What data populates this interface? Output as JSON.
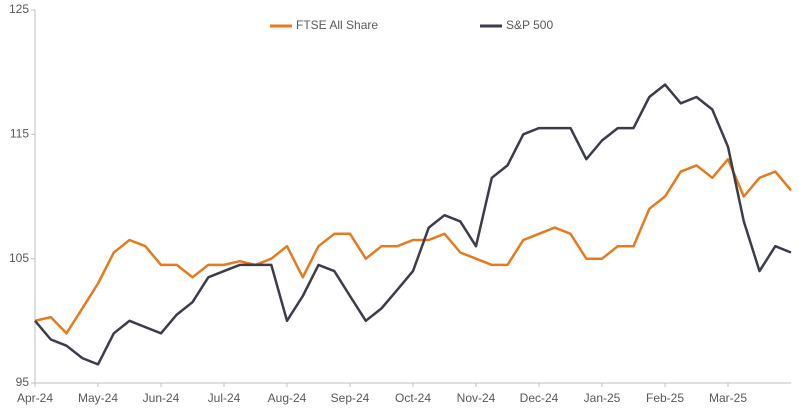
{
  "chart_data": {
    "type": "line",
    "categories": [
      "Apr-24",
      null,
      null,
      null,
      "May-24",
      null,
      null,
      null,
      "Jun-24",
      null,
      null,
      null,
      "Jul-24",
      null,
      null,
      null,
      "Aug-24",
      null,
      null,
      null,
      "Sep-24",
      null,
      null,
      null,
      "Oct-24",
      null,
      null,
      null,
      "Nov-24",
      null,
      null,
      null,
      "Dec-24",
      null,
      null,
      null,
      "Jan-25",
      null,
      null,
      null,
      "Feb-25",
      null,
      null,
      null,
      "Mar-25",
      null,
      null,
      null,
      null
    ],
    "series": [
      {
        "name": "FTSE All Share",
        "color": "#e57a1e",
        "values": [
          100,
          100.3,
          99,
          101,
          103,
          105.5,
          106.5,
          106,
          104.5,
          104.5,
          103.5,
          104.5,
          104.5,
          104.8,
          104.5,
          105,
          106,
          103.5,
          106,
          107,
          107,
          105,
          106,
          106,
          106.5,
          106.5,
          107,
          105.5,
          105,
          104.5,
          104.5,
          106.5,
          107,
          107.5,
          107,
          105,
          105,
          106,
          106,
          109,
          110,
          112,
          112.5,
          111.5,
          113,
          110,
          111.5,
          112,
          110.5
        ]
      },
      {
        "name": "S&P 500",
        "color": "#3b3d4a",
        "values": [
          100,
          98.5,
          98,
          97,
          96.5,
          99,
          100,
          99.5,
          99,
          100.5,
          101.5,
          103.5,
          104,
          104.5,
          104.5,
          104.5,
          100,
          102,
          104.5,
          104,
          102,
          100,
          101,
          102.5,
          104,
          107.5,
          108.5,
          108,
          106,
          111.5,
          112.5,
          115,
          115.5,
          115.5,
          115.5,
          113,
          114.5,
          115.5,
          115.5,
          118,
          119,
          117.5,
          118,
          117,
          114,
          108,
          104,
          106,
          105.5
        ]
      }
    ],
    "ylim": [
      95,
      125
    ],
    "yticks": [
      95,
      105,
      115,
      125
    ],
    "grid": false,
    "legend": "top"
  }
}
